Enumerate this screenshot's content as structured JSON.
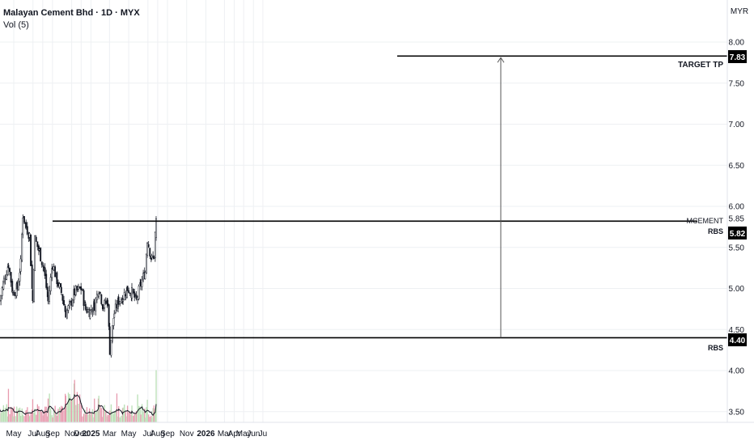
{
  "header": {
    "symbol": "Malayan Cement Bhd · 1D · MYX",
    "volume_label": "Vol (5)"
  },
  "currency": "MYR",
  "annotations": {
    "target_label": "TARGET TP",
    "target_price": "7.83",
    "resistance_label_top": "MCEMENT",
    "resistance_label_bottom": "RBS",
    "resistance_price": "5.82",
    "support_label": "RBS",
    "support_price": "4.40"
  },
  "colors": {
    "up": "#26a69a",
    "down": "#ef5350",
    "vol_up": "#b9dfb5",
    "vol_down": "#e79aae",
    "candle": "#131722",
    "grid": "#eef0f3",
    "line": "#000000",
    "ma_line": "#131722"
  },
  "chart_data": {
    "type": "candlestick",
    "title": "Malayan Cement Bhd · 1D · MYX",
    "ylim": [
      3.4,
      8.35
    ],
    "y_ticks": [
      "3.50",
      "4.00",
      "4.50",
      "5.00",
      "5.50",
      "5.85",
      "6.00",
      "6.50",
      "7.00",
      "7.50",
      "8.00"
    ],
    "x_ticks": [
      "May",
      "Jul",
      "Aug",
      "Sep",
      "Nov",
      "Dec",
      "2025",
      "Mar",
      "May",
      "Jul",
      "Aug",
      "Sep",
      "Nov",
      "2026",
      "Mar",
      "Apr",
      "May",
      "Jun",
      "Ju"
    ],
    "price_path": [
      {
        "date": "2024-04-22",
        "close": 4.85
      },
      {
        "date": "2024-05-06",
        "close": 5.1
      },
      {
        "date": "2024-05-20",
        "close": 5.3
      },
      {
        "date": "2024-06-03",
        "close": 4.95
      },
      {
        "date": "2024-06-17",
        "close": 5.0
      },
      {
        "date": "2024-06-28",
        "close": 5.3
      },
      {
        "date": "2024-07-05",
        "close": 5.9
      },
      {
        "date": "2024-07-15",
        "close": 5.75
      },
      {
        "date": "2024-07-26",
        "close": 5.65
      },
      {
        "date": "2024-08-05",
        "close": 4.85
      },
      {
        "date": "2024-08-12",
        "close": 5.6
      },
      {
        "date": "2024-08-26",
        "close": 5.45
      },
      {
        "date": "2024-09-09",
        "close": 5.25
      },
      {
        "date": "2024-09-23",
        "close": 4.85
      },
      {
        "date": "2024-10-07",
        "close": 5.3
      },
      {
        "date": "2024-10-21",
        "close": 5.1
      },
      {
        "date": "2024-11-04",
        "close": 4.95
      },
      {
        "date": "2024-11-18",
        "close": 4.7
      },
      {
        "date": "2024-12-02",
        "close": 4.8
      },
      {
        "date": "2024-12-16",
        "close": 4.95
      },
      {
        "date": "2025-01-06",
        "close": 5.0
      },
      {
        "date": "2025-01-20",
        "close": 4.75
      },
      {
        "date": "2025-02-03",
        "close": 4.72
      },
      {
        "date": "2025-02-17",
        "close": 4.8
      },
      {
        "date": "2025-03-03",
        "close": 5.0
      },
      {
        "date": "2025-03-17",
        "close": 4.78
      },
      {
        "date": "2025-03-31",
        "close": 4.85
      },
      {
        "date": "2025-04-07",
        "close": 4.25
      },
      {
        "date": "2025-04-21",
        "close": 4.7
      },
      {
        "date": "2025-05-05",
        "close": 4.85
      },
      {
        "date": "2025-05-19",
        "close": 4.9
      },
      {
        "date": "2025-06-02",
        "close": 5.0
      },
      {
        "date": "2025-06-16",
        "close": 4.95
      },
      {
        "date": "2025-06-30",
        "close": 4.85
      },
      {
        "date": "2025-07-14",
        "close": 5.05
      },
      {
        "date": "2025-07-28",
        "close": 5.2
      },
      {
        "date": "2025-08-04",
        "close": 5.6
      },
      {
        "date": "2025-08-18",
        "close": 5.35
      },
      {
        "date": "2025-08-25",
        "close": 5.4
      },
      {
        "date": "2025-09-01",
        "close": 5.85
      }
    ],
    "levels": [
      {
        "label": "MCEMENT RBS",
        "value": 5.82
      },
      {
        "label": "RBS",
        "value": 4.4
      },
      {
        "label": "TARGET TP",
        "value": 7.83
      }
    ]
  }
}
